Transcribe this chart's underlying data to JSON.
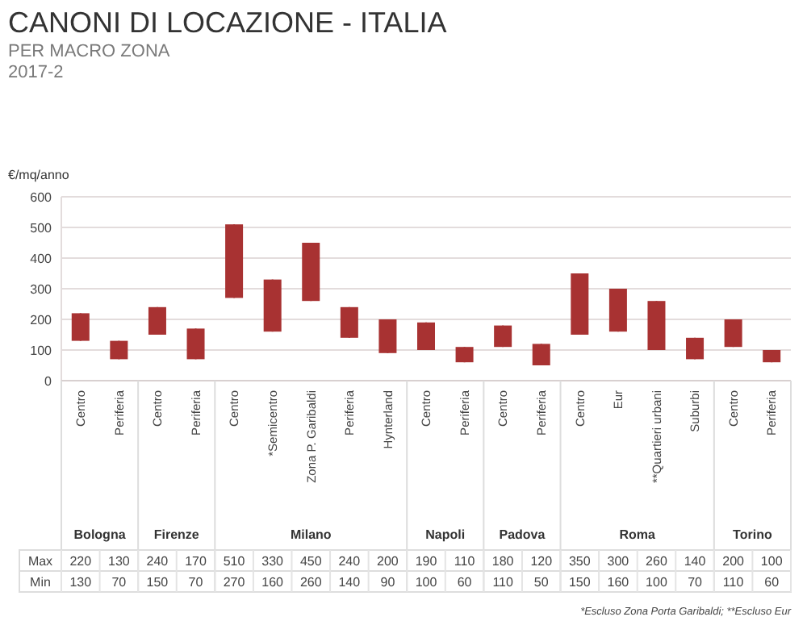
{
  "chart_data": {
    "type": "candlestick",
    "title": "CANONI DI LOCAZIONE - ITALIA",
    "subtitle": "PER MACRO ZONA\n2017-2",
    "ylabel": "€/mq/anno",
    "categories": [
      "Centro",
      "Periferia",
      "Centro",
      "Periferia",
      "Centro",
      "*Semicentro",
      "Zona P. Garibaldi",
      "Periferia",
      "Hynterland",
      "Centro",
      "Periferia",
      "Centro",
      "Periferia",
      "Centro",
      "Eur",
      "**Quartieri urbani",
      "Suburbi",
      "Centro",
      "Periferia"
    ],
    "ohlc": [
      [
        130,
        220,
        130,
        220
      ],
      [
        70,
        130,
        70,
        130
      ],
      [
        150,
        240,
        150,
        240
      ],
      [
        70,
        170,
        70,
        170
      ],
      [
        270,
        510,
        270,
        510
      ],
      [
        160,
        330,
        160,
        330
      ],
      [
        260,
        450,
        260,
        450
      ],
      [
        140,
        240,
        140,
        240
      ],
      [
        90,
        200,
        90,
        200
      ],
      [
        100,
        190,
        100,
        190
      ],
      [
        60,
        110,
        60,
        110
      ],
      [
        110,
        180,
        110,
        180
      ],
      [
        50,
        120,
        50,
        120
      ],
      [
        150,
        350,
        150,
        350
      ],
      [
        160,
        300,
        160,
        300
      ],
      [
        100,
        260,
        100,
        260
      ],
      [
        70,
        140,
        70,
        140
      ],
      [
        110,
        200,
        110,
        200
      ],
      [
        60,
        100,
        60,
        100
      ]
    ],
    "color": "#a83232",
    "ylim": [
      0,
      600
    ],
    "yticks": [
      0,
      100,
      200,
      300,
      400,
      500,
      600
    ],
    "grid": "y",
    "annotations": [
      "Bologna",
      "Firenze",
      "Milano",
      "Napoli",
      "Padova",
      "Roma",
      "Torino",
      "Max",
      "Min",
      "*Escluso Zona Porta Garibaldi; **Escluso Eur",
      "220",
      "130",
      "240",
      "170",
      "510",
      "330",
      "450",
      "240",
      "200",
      "190",
      "110",
      "180",
      "120",
      "350",
      "300",
      "260",
      "140",
      "200",
      "100",
      "130",
      "70",
      "150",
      "70",
      "270",
      "160",
      "260",
      "140",
      "90",
      "100",
      "60",
      "110",
      "50",
      "150",
      "160",
      "100",
      "70",
      "110",
      "60"
    ]
  }
}
